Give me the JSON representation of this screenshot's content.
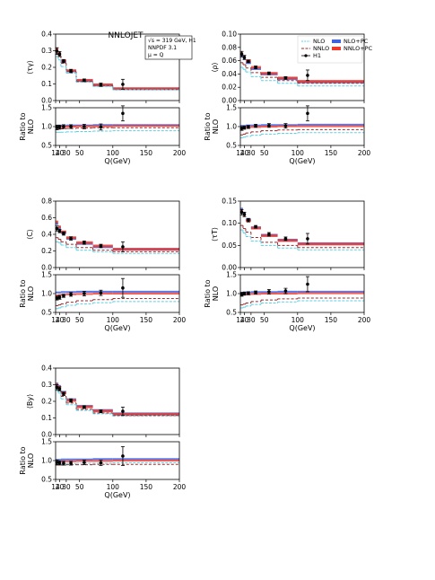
{
  "figure": {
    "title": "NNLOJET",
    "info_lines": [
      "√s = 319 GeV, H1",
      "NNPDF 3.1",
      "μ = Q"
    ],
    "legend": [
      {
        "label": "NLO",
        "style": "dotted",
        "color": "#5bd1e8"
      },
      {
        "label": "NNLO",
        "style": "dashed",
        "color": "#9a2d2d"
      },
      {
        "label": "H1",
        "style": "marker",
        "color": "#000000"
      },
      {
        "label": "NLO+PC",
        "style": "band",
        "color": "#3f63e0"
      },
      {
        "label": "NNLO+PC",
        "style": "band",
        "color": "#ef3b2c"
      }
    ],
    "colors": {
      "nlo": "#5bd1e8",
      "nnlo": "#9a2d2d",
      "nlopc": "#3f63e0",
      "nnlopc": "#ef3b2c",
      "data": "#000000"
    }
  },
  "chart_data": [
    {
      "type": "line",
      "ylabel": "⟨τγ⟩",
      "ratio_ylabel": [
        "Ratio to",
        "NLO"
      ],
      "xlabel": "Q(GeV)",
      "x_edges": [
        14,
        18,
        22,
        30,
        45,
        70,
        100,
        200
      ],
      "x_ticks": [
        14,
        20,
        30,
        50,
        100,
        150,
        200
      ],
      "ylim": [
        0,
        0.4
      ],
      "y_ticks": [
        "0.0",
        "0.1",
        "0.2",
        "0.3",
        "0.4"
      ],
      "series": [
        {
          "key": "nlo",
          "values": [
            0.265,
            0.245,
            0.205,
            0.165,
            0.11,
            0.085,
            0.065
          ]
        },
        {
          "key": "nnlo",
          "values": [
            0.285,
            0.27,
            0.225,
            0.175,
            0.115,
            0.09,
            0.068
          ]
        },
        {
          "key": "nlopc",
          "values": [
            0.3,
            0.28,
            0.235,
            0.178,
            0.12,
            0.093,
            0.07
          ]
        },
        {
          "key": "nnlopc",
          "values": [
            0.31,
            0.285,
            0.24,
            0.18,
            0.122,
            0.095,
            0.072
          ]
        }
      ],
      "data_points": {
        "x": [
          16,
          20,
          26,
          37,
          57,
          82,
          115
        ],
        "y": [
          0.298,
          0.28,
          0.237,
          0.178,
          0.122,
          0.095,
          0.098
        ],
        "err": [
          0.02,
          0.015,
          0.01,
          0.01,
          0.008,
          0.01,
          0.03
        ]
      },
      "ratio": {
        "ylim": [
          0.5,
          1.5
        ],
        "y_ticks": [
          "0.5",
          "1.0",
          "1.5"
        ],
        "series": [
          {
            "key": "nlo",
            "values": [
              0.85,
              0.85,
              0.85,
              0.86,
              0.87,
              0.88,
              0.89
            ]
          },
          {
            "key": "nnlo",
            "values": [
              0.92,
              0.93,
              0.94,
              0.95,
              0.96,
              0.97,
              0.97
            ]
          },
          {
            "key": "nlopc",
            "values": [
              1.02,
              1.02,
              1.02,
              1.03,
              1.03,
              1.04,
              1.04
            ]
          },
          {
            "key": "nnlopc",
            "values": [
              0.98,
              0.99,
              0.99,
              1.0,
              1.01,
              1.01,
              1.02
            ]
          }
        ],
        "data_points": {
          "y": [
            0.98,
            0.99,
            1.0,
            1.0,
            1.0,
            0.99,
            1.35
          ],
          "err": [
            0.06,
            0.05,
            0.05,
            0.05,
            0.06,
            0.08,
            0.2
          ]
        }
      }
    },
    {
      "type": "line",
      "ylabel": "⟨ρ⟩",
      "ratio_ylabel": [
        "Ratio to",
        "NLO"
      ],
      "xlabel": "Q(GeV)",
      "x_edges": [
        14,
        18,
        22,
        30,
        45,
        70,
        100,
        200
      ],
      "x_ticks": [
        14,
        20,
        30,
        50,
        100,
        150,
        200
      ],
      "ylim": [
        0,
        0.1
      ],
      "y_ticks": [
        "0.00",
        "0.02",
        "0.04",
        "0.06",
        "0.08",
        "0.10"
      ],
      "series": [
        {
          "key": "nlo",
          "values": [
            0.05,
            0.047,
            0.043,
            0.036,
            0.03,
            0.026,
            0.022
          ]
        },
        {
          "key": "nnlo",
          "values": [
            0.057,
            0.054,
            0.049,
            0.042,
            0.035,
            0.03,
            0.026
          ]
        },
        {
          "key": "nlopc",
          "values": [
            0.067,
            0.063,
            0.057,
            0.048,
            0.04,
            0.033,
            0.028
          ]
        },
        {
          "key": "nnlopc",
          "values": [
            0.071,
            0.066,
            0.06,
            0.05,
            0.041,
            0.034,
            0.029
          ]
        }
      ],
      "data_points": {
        "x": [
          16,
          20,
          26,
          37,
          57,
          82,
          115
        ],
        "y": [
          0.07,
          0.065,
          0.059,
          0.05,
          0.041,
          0.034,
          0.038
        ],
        "err": [
          0.004,
          0.003,
          0.002,
          0.002,
          0.002,
          0.002,
          0.008
        ]
      },
      "ratio": {
        "ylim": [
          0.5,
          1.5
        ],
        "y_ticks": [
          "0.5",
          "1.0",
          "1.5"
        ],
        "series": [
          {
            "key": "nlo",
            "values": [
              0.7,
              0.72,
              0.74,
              0.77,
              0.8,
              0.82,
              0.84
            ]
          },
          {
            "key": "nnlo",
            "values": [
              0.78,
              0.8,
              0.83,
              0.86,
              0.89,
              0.91,
              0.92
            ]
          },
          {
            "key": "nlopc",
            "values": [
              1.02,
              1.02,
              1.03,
              1.03,
              1.04,
              1.04,
              1.05
            ]
          },
          {
            "key": "nnlopc",
            "values": [
              0.96,
              0.97,
              0.98,
              0.99,
              1.0,
              1.01,
              1.01
            ]
          }
        ],
        "data_points": {
          "y": [
            0.95,
            0.97,
            0.99,
            1.02,
            1.03,
            1.02,
            1.35
          ],
          "err": [
            0.05,
            0.04,
            0.04,
            0.04,
            0.05,
            0.06,
            0.2
          ]
        }
      }
    },
    {
      "type": "line",
      "ylabel": "⟨C⟩",
      "ratio_ylabel": [
        "Ratio to",
        "NLO"
      ],
      "xlabel": "Q(GeV)",
      "x_edges": [
        14,
        18,
        22,
        30,
        45,
        70,
        100,
        200
      ],
      "x_ticks": [
        14,
        20,
        30,
        50,
        100,
        150,
        200
      ],
      "ylim": [
        0,
        0.8
      ],
      "y_ticks": [
        "0.0",
        "0.2",
        "0.4",
        "0.6",
        "0.8"
      ],
      "series": [
        {
          "key": "nlo",
          "values": [
            0.31,
            0.3,
            0.27,
            0.24,
            0.21,
            0.19,
            0.17
          ]
        },
        {
          "key": "nnlo",
          "values": [
            0.36,
            0.34,
            0.31,
            0.28,
            0.24,
            0.21,
            0.19
          ]
        },
        {
          "key": "nlopc",
          "values": [
            0.53,
            0.48,
            0.42,
            0.35,
            0.29,
            0.25,
            0.22
          ]
        },
        {
          "key": "nnlopc",
          "values": [
            0.55,
            0.49,
            0.43,
            0.36,
            0.3,
            0.26,
            0.22
          ]
        }
      ],
      "data_points": {
        "x": [
          16,
          20,
          26,
          37,
          57,
          82,
          115
        ],
        "y": [
          0.47,
          0.44,
          0.41,
          0.35,
          0.3,
          0.26,
          0.25
        ],
        "err": [
          0.03,
          0.02,
          0.02,
          0.02,
          0.02,
          0.02,
          0.06
        ]
      },
      "ratio": {
        "ylim": [
          0.5,
          1.5
        ],
        "y_ticks": [
          "0.5",
          "1.0",
          "1.5"
        ],
        "series": [
          {
            "key": "nlo",
            "values": [
              0.6,
              0.62,
              0.65,
              0.69,
              0.73,
              0.76,
              0.79
            ]
          },
          {
            "key": "nnlo",
            "values": [
              0.68,
              0.7,
              0.73,
              0.77,
              0.81,
              0.84,
              0.87
            ]
          },
          {
            "key": "nlopc",
            "values": [
              1.03,
              1.03,
              1.04,
              1.04,
              1.05,
              1.05,
              1.05
            ]
          },
          {
            "key": "nnlopc",
            "values": [
              0.95,
              0.96,
              0.97,
              0.98,
              0.99,
              1.0,
              1.0
            ]
          }
        ],
        "data_points": {
          "y": [
            0.88,
            0.9,
            0.94,
            0.98,
            1.0,
            1.02,
            1.15
          ],
          "err": [
            0.05,
            0.05,
            0.04,
            0.05,
            0.06,
            0.07,
            0.25
          ]
        }
      }
    },
    {
      "type": "line",
      "ylabel": "⟨τT⟩",
      "ratio_ylabel": [
        "Ratio to",
        "NLO"
      ],
      "xlabel": "Q(GeV)",
      "x_edges": [
        14,
        18,
        22,
        30,
        45,
        70,
        100,
        200
      ],
      "x_ticks": [
        14,
        20,
        30,
        50,
        100,
        150,
        200
      ],
      "ylim": [
        0,
        0.15
      ],
      "y_ticks": [
        "0.00",
        "0.05",
        "0.10",
        "0.15"
      ],
      "series": [
        {
          "key": "nlo",
          "values": [
            0.085,
            0.078,
            0.07,
            0.06,
            0.05,
            0.044,
            0.04
          ]
        },
        {
          "key": "nnlo",
          "values": [
            0.095,
            0.088,
            0.08,
            0.068,
            0.057,
            0.05,
            0.045
          ]
        },
        {
          "key": "nlopc",
          "values": [
            0.132,
            0.122,
            0.108,
            0.09,
            0.073,
            0.062,
            0.054
          ]
        },
        {
          "key": "nnlopc",
          "values": [
            0.128,
            0.119,
            0.106,
            0.089,
            0.072,
            0.061,
            0.053
          ]
        }
      ],
      "data_points": {
        "x": [
          16,
          20,
          26,
          37,
          57,
          82,
          115
        ],
        "y": [
          0.125,
          0.12,
          0.107,
          0.092,
          0.075,
          0.065,
          0.065
        ],
        "err": [
          0.006,
          0.005,
          0.004,
          0.003,
          0.004,
          0.004,
          0.012
        ]
      },
      "ratio": {
        "ylim": [
          0.5,
          1.5
        ],
        "y_ticks": [
          "0.5",
          "1.0",
          "1.5"
        ],
        "series": [
          {
            "key": "nlo",
            "values": [
              0.62,
              0.64,
              0.67,
              0.71,
              0.75,
              0.78,
              0.81
            ]
          },
          {
            "key": "nnlo",
            "values": [
              0.7,
              0.72,
              0.75,
              0.79,
              0.83,
              0.86,
              0.88
            ]
          },
          {
            "key": "nlopc",
            "values": [
              1.02,
              1.03,
              1.03,
              1.04,
              1.04,
              1.05,
              1.05
            ]
          },
          {
            "key": "nnlopc",
            "values": [
              0.96,
              0.97,
              0.98,
              0.99,
              1.0,
              1.0,
              1.01
            ]
          }
        ],
        "data_points": {
          "y": [
            0.98,
            1.0,
            1.01,
            1.03,
            1.05,
            1.07,
            1.25
          ],
          "err": [
            0.05,
            0.04,
            0.04,
            0.04,
            0.06,
            0.07,
            0.2
          ]
        }
      }
    },
    {
      "type": "line",
      "ylabel": "⟨By⟩",
      "ratio_ylabel": [
        "Ratio to",
        "NLO"
      ],
      "xlabel": "Q(GeV)",
      "x_edges": [
        14,
        18,
        22,
        30,
        45,
        70,
        100,
        200
      ],
      "x_ticks": [
        14,
        20,
        30,
        50,
        100,
        150,
        200
      ],
      "ylim": [
        0,
        0.4
      ],
      "y_ticks": [
        "0.0",
        "0.1",
        "0.2",
        "0.3",
        "0.4"
      ],
      "series": [
        {
          "key": "nlo",
          "values": [
            0.265,
            0.25,
            0.215,
            0.18,
            0.145,
            0.125,
            0.11
          ]
        },
        {
          "key": "nnlo",
          "values": [
            0.28,
            0.265,
            0.23,
            0.19,
            0.152,
            0.13,
            0.115
          ]
        },
        {
          "key": "nlopc",
          "values": [
            0.305,
            0.29,
            0.255,
            0.21,
            0.17,
            0.145,
            0.125
          ]
        },
        {
          "key": "nnlopc",
          "values": [
            0.3,
            0.285,
            0.25,
            0.205,
            0.167,
            0.142,
            0.122
          ]
        }
      ],
      "data_points": {
        "x": [
          16,
          20,
          26,
          37,
          57,
          82,
          115
        ],
        "y": [
          0.285,
          0.275,
          0.245,
          0.205,
          0.165,
          0.14,
          0.14
        ],
        "err": [
          0.015,
          0.012,
          0.01,
          0.01,
          0.008,
          0.008,
          0.025
        ]
      },
      "ratio": {
        "ylim": [
          0.5,
          1.5
        ],
        "y_ticks": [
          "0.5",
          "1.0",
          "1.5"
        ],
        "series": [
          {
            "key": "nlo",
            "values": [
              0.9,
              0.91,
              0.91,
              0.92,
              0.93,
              0.93,
              0.94
            ]
          },
          {
            "key": "nnlo",
            "values": [
              0.88,
              0.88,
              0.88,
              0.89,
              0.89,
              0.9,
              0.9
            ]
          },
          {
            "key": "nlopc",
            "values": [
              1.02,
              1.02,
              1.03,
              1.03,
              1.03,
              1.04,
              1.04
            ]
          },
          {
            "key": "nnlopc",
            "values": [
              0.97,
              0.97,
              0.98,
              0.98,
              0.99,
              0.99,
              1.0
            ]
          }
        ],
        "data_points": {
          "y": [
            0.95,
            0.94,
            0.93,
            0.93,
            0.95,
            0.94,
            1.12
          ],
          "err": [
            0.06,
            0.05,
            0.05,
            0.05,
            0.06,
            0.07,
            0.25
          ]
        }
      }
    }
  ]
}
